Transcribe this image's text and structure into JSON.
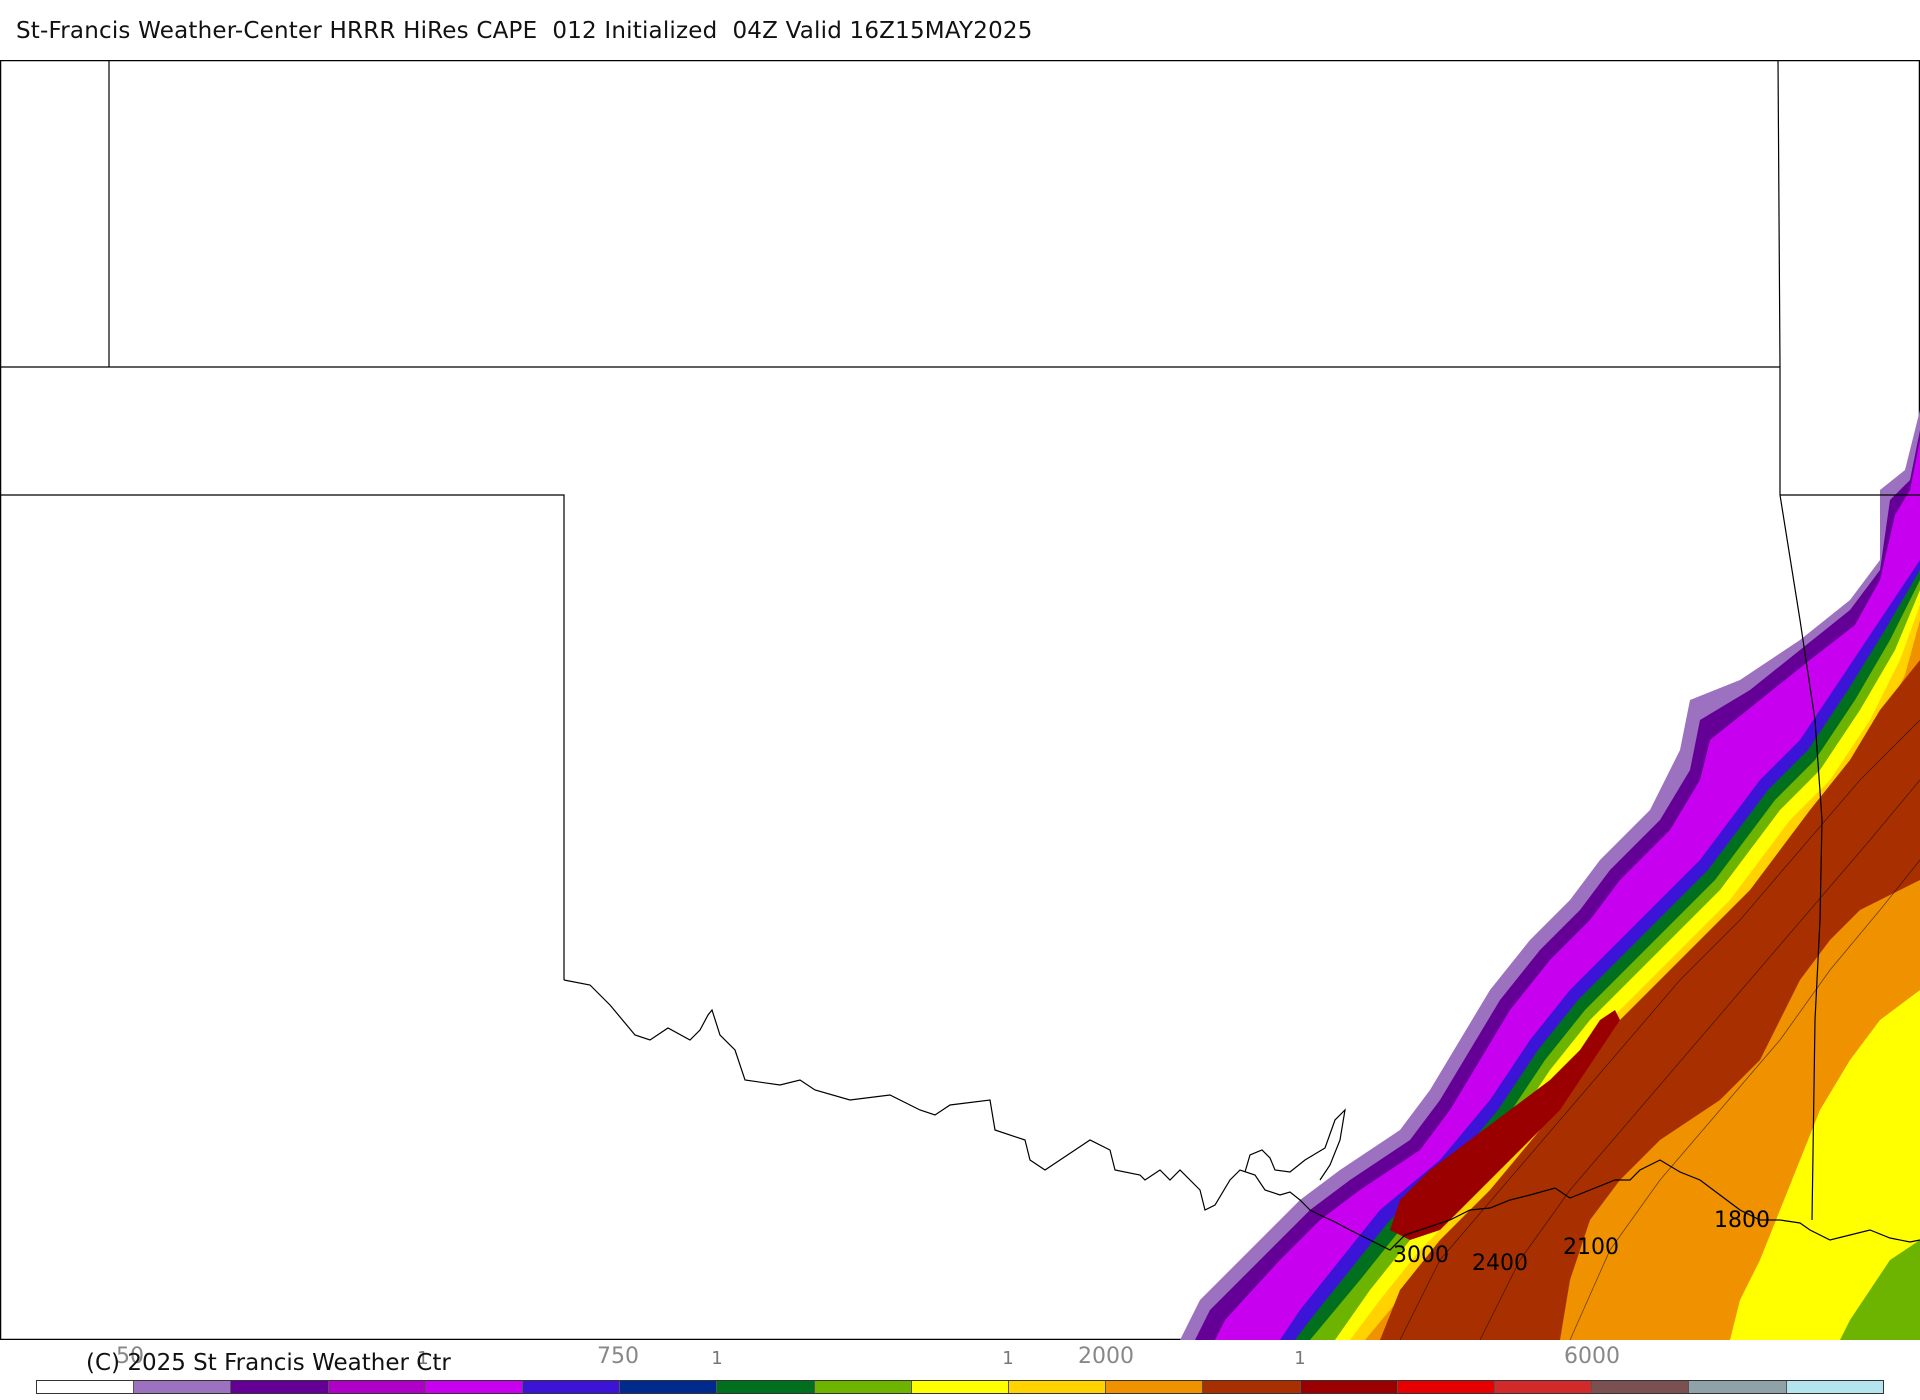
{
  "header": {
    "title": "St-Francis Weather-Center HRRR HiRes CAPE  012 Initialized  04Z Valid 16Z15MAY2025"
  },
  "map": {
    "contour_labels": [
      "3000",
      "2400",
      "2100",
      "1800"
    ]
  },
  "colorbar": {
    "labels": [
      "50",
      "750",
      "2000",
      "6000"
    ],
    "tick_marks": [
      "1",
      "1",
      "1",
      "1"
    ],
    "colors": [
      "#ffffff",
      "#9c72c0",
      "#650096",
      "#b000c8",
      "#c800f0",
      "#3c14d8",
      "#002a8c",
      "#00701e",
      "#6cb400",
      "#ffff00",
      "#ffd200",
      "#f09100",
      "#a83000",
      "#9a0000",
      "#e60000",
      "#d22a2a",
      "#7a5050",
      "#8ea2a8",
      "#b4e4ee"
    ]
  },
  "footer": {
    "copyright": "(C) 2025 St Francis Weather Ctr"
  }
}
